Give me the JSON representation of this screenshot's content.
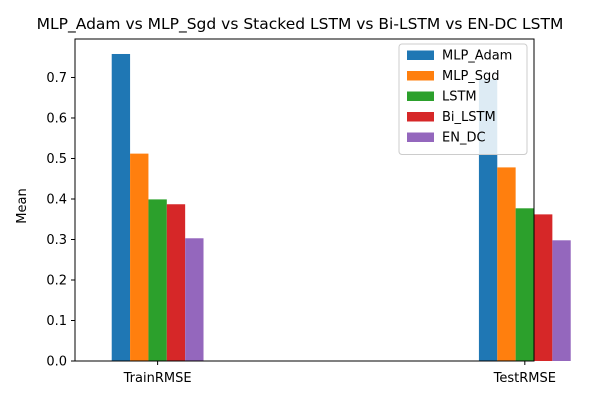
{
  "chart_data": {
    "type": "bar",
    "title": "MLP_Adam vs MLP_Sgd vs Stacked LSTM vs Bi-LSTM vs EN-DC LSTM",
    "xlabel": "",
    "ylabel": "Mean",
    "categories": [
      "TrainRMSE",
      "TestRMSE"
    ],
    "series": [
      {
        "name": "MLP_Adam",
        "color": "#1f77b4",
        "values": [
          0.758,
          0.695
        ]
      },
      {
        "name": "MLP_Sgd",
        "color": "#ff7f0e",
        "values": [
          0.512,
          0.478
        ]
      },
      {
        "name": "LSTM",
        "color": "#2ca02c",
        "values": [
          0.399,
          0.377
        ]
      },
      {
        "name": "Bi_LSTM",
        "color": "#d62728",
        "values": [
          0.387,
          0.362
        ]
      },
      {
        "name": "EN_DC",
        "color": "#9467bd",
        "values": [
          0.303,
          0.298
        ]
      }
    ],
    "ylim": [
      0,
      0.795
    ],
    "yticks": [
      "0.0",
      "0.1",
      "0.2",
      "0.3",
      "0.4",
      "0.5",
      "0.6",
      "0.7"
    ],
    "grid": false,
    "legend_position": "top-right"
  }
}
